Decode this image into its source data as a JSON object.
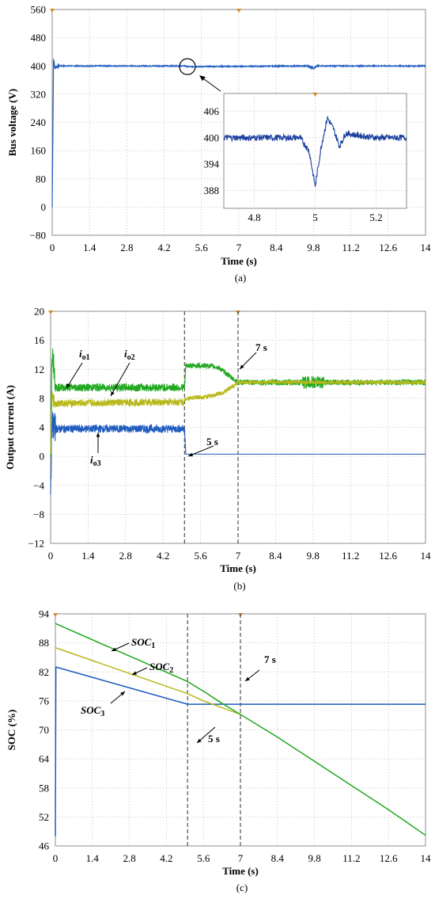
{
  "colors": {
    "blue": "#1f5cbf",
    "darkblue": "#1a3f9e",
    "green": "#1fa81f",
    "yellow": "#b8b81a",
    "olive": "#a0a020",
    "trigger": "#d08a2a"
  },
  "chart_data": [
    {
      "id": "a",
      "type": "line",
      "caption": "(a)",
      "xlabel": "Time (s)",
      "ylabel": "Bus voltage (V)",
      "xlim": [
        0,
        14
      ],
      "ylim": [
        -80,
        560
      ],
      "xticks": [
        "0",
        "1.4",
        "2.8",
        "4.2",
        "5.6",
        "7",
        "8.4",
        "9.8",
        "11.2",
        "12.6",
        "14"
      ],
      "yticks": [
        "560",
        "480",
        "400",
        "320",
        "240",
        "160",
        "80",
        "0",
        "−80"
      ],
      "series": [
        {
          "color": "blue",
          "x": [
            0,
            0.05,
            0.1,
            0.2,
            5.0,
            5.05,
            9.6,
            9.8,
            10.0,
            14
          ],
          "y": [
            0,
            420,
            395,
            400,
            400,
            398,
            400,
            395,
            400,
            400
          ]
        }
      ],
      "inset": {
        "xlim": [
          4.7,
          5.3
        ],
        "ylim": [
          384,
          410
        ],
        "xticks": [
          "4.8",
          "5",
          "5.2"
        ],
        "yticks": [
          "406",
          "400",
          "394",
          "388"
        ],
        "series": [
          {
            "color": "darkblue",
            "x": [
              4.7,
              4.95,
              4.98,
              5.0,
              5.02,
              5.04,
              5.06,
              5.08,
              5.1,
              5.14,
              5.2,
              5.3
            ],
            "y": [
              400,
              400,
              397,
              389,
              398,
              404.5,
              402,
              398,
              401,
              400.5,
              400,
              400
            ]
          }
        ]
      }
    },
    {
      "id": "b",
      "type": "line",
      "caption": "(b)",
      "xlabel": "Time (s)",
      "ylabel": "Output current (A)",
      "xlim": [
        0,
        14
      ],
      "ylim": [
        -12,
        20
      ],
      "xticks": [
        "0",
        "1.4",
        "2.8",
        "4.2",
        "5.6",
        "7",
        "8.4",
        "9.8",
        "11.2",
        "12.6",
        "14"
      ],
      "yticks": [
        "20",
        "16",
        "12",
        "8",
        "4",
        "0",
        "−4",
        "−8",
        "−12"
      ],
      "annotations": [
        "5 s",
        "7 s"
      ],
      "series": [
        {
          "name": "io1",
          "color": "green",
          "x": [
            0,
            0.05,
            0.2,
            5.0,
            5.05,
            5.9,
            6.3,
            6.7,
            7.0,
            14
          ],
          "y": [
            0,
            15,
            9.5,
            9.5,
            12.5,
            12.5,
            12.2,
            11.0,
            10.2,
            10.2
          ]
        },
        {
          "name": "io2",
          "color": "yellow",
          "x": [
            0,
            0.05,
            0.2,
            5.0,
            5.05,
            6.0,
            6.5,
            7.0,
            14
          ],
          "y": [
            0,
            8,
            7.3,
            7.5,
            8.0,
            8.3,
            8.9,
            10.2,
            10.2
          ]
        },
        {
          "name": "io3",
          "color": "blue",
          "x": [
            0,
            0.05,
            0.2,
            5.0,
            5.05,
            14
          ],
          "y": [
            -4,
            4.5,
            3.8,
            3.8,
            0.3,
            0.3
          ]
        }
      ]
    },
    {
      "id": "c",
      "type": "line",
      "caption": "(c)",
      "xlabel": "Time (s)",
      "ylabel": "SOC (%)",
      "xlim": [
        0,
        14
      ],
      "ylim": [
        46,
        94
      ],
      "xticks": [
        "0",
        "1.4",
        "2.8",
        "4.2",
        "5.6",
        "7",
        "8.4",
        "9.8",
        "11.2",
        "12.6",
        "14"
      ],
      "yticks": [
        "94",
        "88",
        "82",
        "76",
        "70",
        "64",
        "58",
        "52",
        "46"
      ],
      "annotations": [
        "5 s",
        "7 s"
      ],
      "series": [
        {
          "name": "SOC1",
          "color": "green",
          "x": [
            0,
            5.0,
            5.6,
            6.3,
            7.0,
            8.4,
            9.8,
            11.2,
            12.6,
            14
          ],
          "y": [
            92,
            80,
            78,
            75.5,
            73.2,
            68.5,
            63.5,
            58.5,
            53.5,
            48.2
          ]
        },
        {
          "name": "SOC2",
          "color": "yellow",
          "x": [
            0,
            5.0,
            5.6,
            6.3,
            7.0
          ],
          "y": [
            87,
            77.5,
            76,
            74.6,
            73.2
          ]
        },
        {
          "name": "SOC3",
          "color": "blue",
          "x": [
            0,
            0.02,
            5.0,
            14
          ],
          "y": [
            48,
            83,
            75.3,
            75.3
          ]
        }
      ]
    }
  ]
}
